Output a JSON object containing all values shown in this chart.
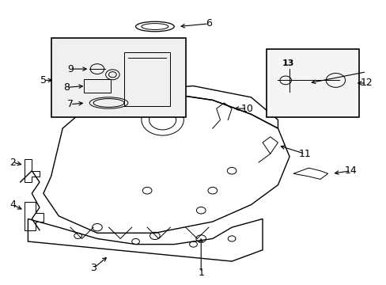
{
  "bg_color": "#ffffff",
  "line_color": "#000000",
  "label_color": "#000000",
  "font_size_labels": 9
}
